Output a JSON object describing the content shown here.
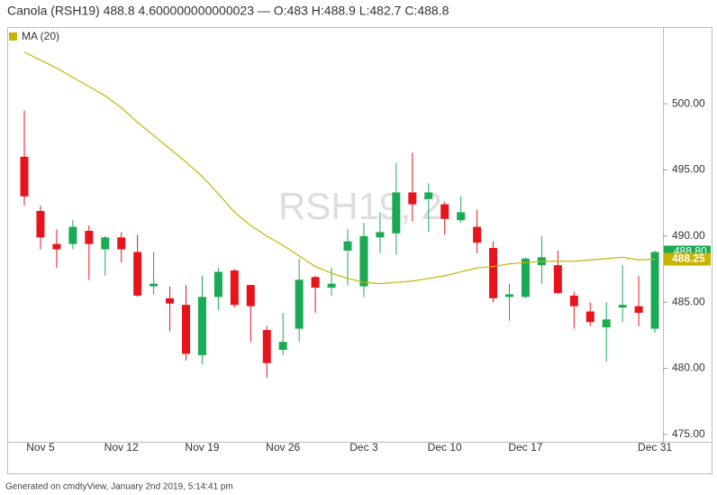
{
  "chart_data": {
    "type": "candlestick",
    "title": "Canola (RSH19) 488.8 4.600000000000023 — O:483 H:488.9 L:482.7 C:488.8",
    "watermark": "RSH19, 2",
    "footer": "Generated on cmdtyView, January 2nd 2019, 5:14:41 pm",
    "categories": [
      null,
      "Nov 5",
      null,
      null,
      null,
      null,
      "Nov 12",
      null,
      null,
      null,
      null,
      "Nov 19",
      null,
      null,
      null,
      null,
      "Nov 26",
      null,
      null,
      null,
      null,
      "Dec 3",
      null,
      null,
      null,
      null,
      "Dec 10",
      null,
      null,
      null,
      null,
      "Dec 17",
      null,
      null,
      null,
      null,
      null,
      null,
      null,
      "Dec 31"
    ],
    "open": [
      496,
      491.9,
      489.4,
      489.4,
      490.4,
      489,
      489.9,
      488.8,
      486.2,
      485.3,
      484.8,
      481,
      485.4,
      487.4,
      486.3,
      482.9,
      481.4,
      483,
      486.9,
      486.1,
      488.9,
      486.2,
      489.9,
      490.2,
      493.3,
      492.8,
      492.4,
      491.2,
      490.7,
      489.1,
      485.4,
      485.4,
      487.8,
      487.8,
      485.5,
      484.3,
      483.1,
      484.6,
      484.7,
      483
    ],
    "high": [
      499.5,
      492.3,
      490.5,
      491.2,
      490.8,
      490,
      490.3,
      490.1,
      488.8,
      486.2,
      486.3,
      487,
      487.6,
      487.5,
      486.3,
      483.2,
      484.2,
      488.3,
      487,
      487.6,
      490.5,
      491,
      491.8,
      495.5,
      496.3,
      494,
      492.6,
      493,
      492,
      489.6,
      486.4,
      488.4,
      490,
      488.9,
      485.8,
      485,
      485,
      487.8,
      487,
      488.9
    ],
    "low": [
      492.3,
      489,
      487.6,
      489,
      486.7,
      487,
      488,
      485.4,
      485.6,
      482.8,
      480.6,
      480.3,
      484.4,
      484.6,
      482,
      479.3,
      481,
      482,
      484.2,
      485.5,
      486.3,
      485.4,
      488.7,
      488.6,
      491.1,
      490.3,
      490.1,
      491,
      488.7,
      485,
      483.6,
      485.3,
      486.4,
      485.6,
      483,
      483.2,
      480.5,
      483.5,
      483.2,
      482.7
    ],
    "close": [
      493,
      489.9,
      489,
      490.7,
      489.4,
      489.9,
      489,
      485.5,
      486.4,
      484.9,
      481.1,
      485.4,
      487.3,
      484.8,
      484.7,
      480.4,
      482,
      486.7,
      486.1,
      486.4,
      489.6,
      490,
      490.3,
      493.3,
      492.4,
      493.3,
      491.3,
      491.8,
      489.5,
      485.3,
      485.6,
      488.3,
      488.4,
      485.7,
      484.7,
      483.5,
      483.7,
      484.8,
      484.2,
      488.8
    ],
    "up_color": "#1aaa55",
    "down_color": "#e8141c",
    "last_close_label": "488.80",
    "ma": {
      "name": "MA (20)",
      "color": "#c8b400",
      "values": [
        503.9,
        503.3,
        502.7,
        502,
        501.3,
        500.6,
        499.7,
        498.6,
        497.6,
        496.6,
        495.6,
        494.5,
        493.2,
        491.8,
        490.8,
        490,
        489.3,
        488.5,
        487.7,
        487.2,
        486.8,
        486.5,
        486.4,
        486.5,
        486.6,
        486.8,
        487,
        487.3,
        487.6,
        487.7,
        487.9,
        488,
        488.1,
        488.1,
        488.1,
        488.2,
        488.3,
        488.4,
        488.2,
        488.25
      ],
      "last_label": "488.25"
    },
    "ylim": [
      474.45,
      505.8
    ],
    "yticks": [
      {
        "value": 475,
        "label": "475.00"
      },
      {
        "value": 480,
        "label": "480.00"
      },
      {
        "value": 485,
        "label": "485.00"
      },
      {
        "value": 490,
        "label": "490.00"
      },
      {
        "value": 495,
        "label": "495.00"
      },
      {
        "value": 500,
        "label": "500.00"
      }
    ]
  }
}
